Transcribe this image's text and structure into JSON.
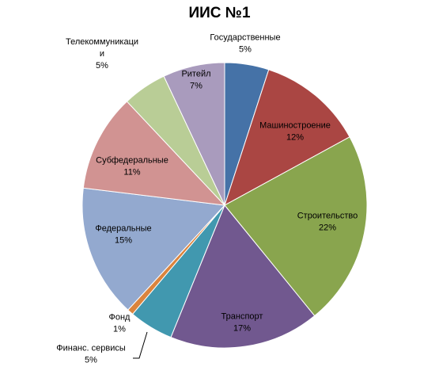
{
  "chart_data": {
    "type": "pie",
    "title": "ИИС №1",
    "slices": [
      {
        "label": "Государственные",
        "percent_label": "5%",
        "value": 5,
        "color": "#4572A7"
      },
      {
        "label": "Машиностроение",
        "percent_label": "12%",
        "value": 12,
        "color": "#AA4643"
      },
      {
        "label": "Строительство",
        "percent_label": "22%",
        "value": 22,
        "color": "#89A54E"
      },
      {
        "label": "Транспорт",
        "percent_label": "17%",
        "value": 17,
        "color": "#71588F"
      },
      {
        "label": "Финанс. сервисы",
        "percent_label": "5%",
        "value": 5,
        "color": "#4198AF"
      },
      {
        "label": "Фонд",
        "percent_label": "1%",
        "value": 0.7,
        "color": "#DB843D"
      },
      {
        "label": "Федеральные",
        "percent_label": "15%",
        "value": 15,
        "color": "#93A9CF"
      },
      {
        "label": "Субфедеральные",
        "percent_label": "11%",
        "value": 11,
        "color": "#D19392"
      },
      {
        "label": "Телекоммуникаци и",
        "label_lines": [
          "Телекоммуникаци",
          "и"
        ],
        "percent_label": "5%",
        "value": 5,
        "color": "#B9CD96"
      },
      {
        "label": "Ритейл",
        "percent_label": "7%",
        "value": 7,
        "color": "#A99BBD"
      }
    ],
    "legend": "none"
  }
}
